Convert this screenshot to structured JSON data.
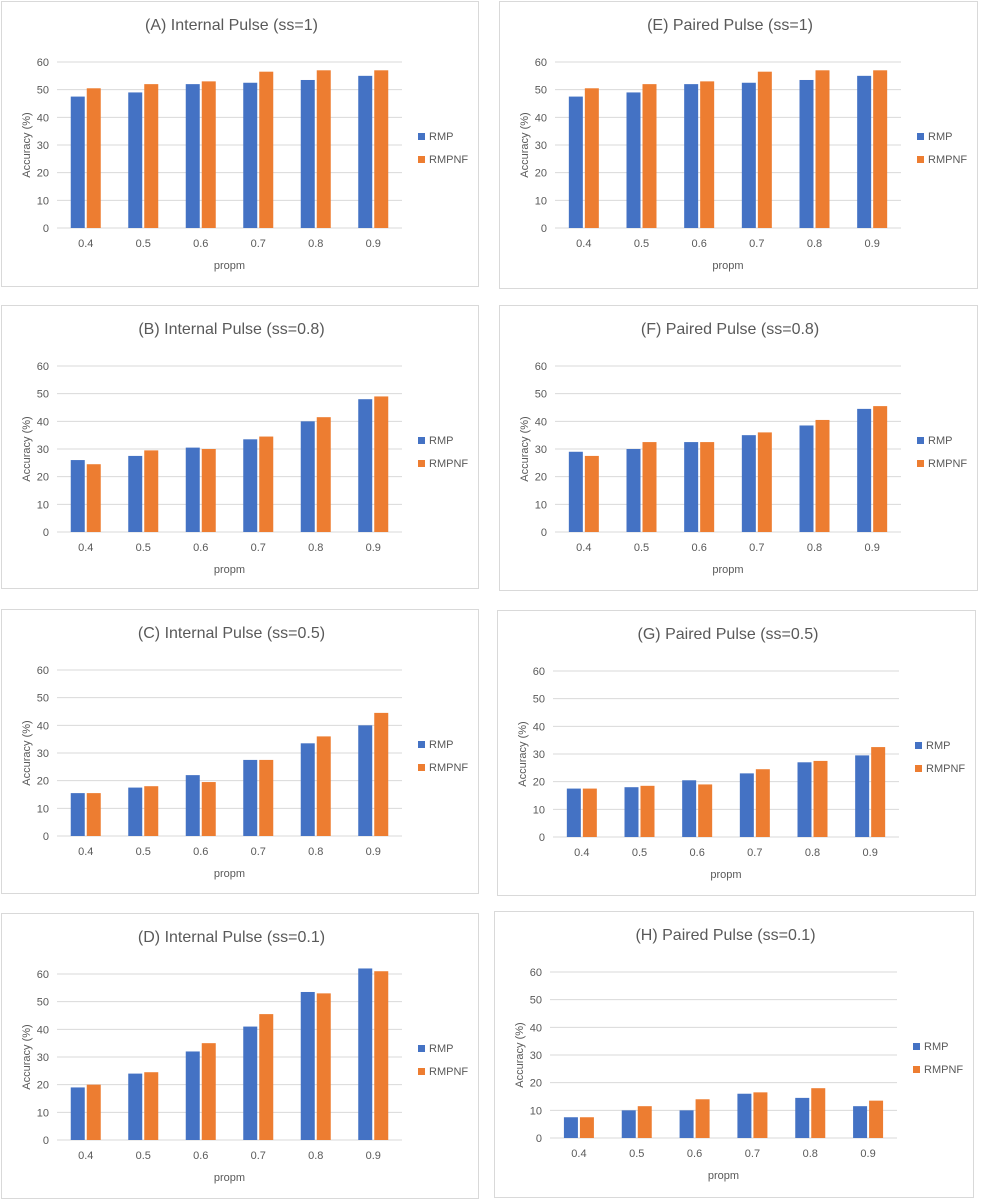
{
  "colors": {
    "RMP": "#4472c4",
    "RMPNF": "#ed7d31",
    "grid": "#d9d9d9",
    "text": "#595959",
    "border": "#d9d9d9"
  },
  "chart_data": [
    {
      "id": "A",
      "type": "bar",
      "title": "(A) Internal Pulse (ss=1)",
      "xlabel": "propm",
      "ylabel": "Accuracy (%)",
      "categories": [
        "0.4",
        "0.5",
        "0.6",
        "0.7",
        "0.8",
        "0.9"
      ],
      "ylim": [
        0,
        60
      ],
      "yticks": [
        0,
        10,
        20,
        30,
        40,
        50,
        60
      ],
      "grid": true,
      "legend_position": "right",
      "series": [
        {
          "name": "RMP",
          "values": [
            47.5,
            49,
            52,
            52.5,
            53.5,
            55
          ]
        },
        {
          "name": "RMPNF",
          "values": [
            50.5,
            52,
            53,
            56.5,
            57,
            57
          ]
        }
      ]
    },
    {
      "id": "E",
      "type": "bar",
      "title": "(E) Paired Pulse (ss=1)",
      "xlabel": "propm",
      "ylabel": "Accuracy (%)",
      "categories": [
        "0.4",
        "0.5",
        "0.6",
        "0.7",
        "0.8",
        "0.9"
      ],
      "ylim": [
        0,
        60
      ],
      "yticks": [
        0,
        10,
        20,
        30,
        40,
        50,
        60
      ],
      "grid": true,
      "legend_position": "right",
      "series": [
        {
          "name": "RMP",
          "values": [
            47.5,
            49,
            52,
            52.5,
            53.5,
            55
          ]
        },
        {
          "name": "RMPNF",
          "values": [
            50.5,
            52,
            53,
            56.5,
            57,
            57
          ]
        }
      ]
    },
    {
      "id": "B",
      "type": "bar",
      "title": "(B) Internal Pulse (ss=0.8)",
      "xlabel": "propm",
      "ylabel": "Accuracy (%)",
      "categories": [
        "0.4",
        "0.5",
        "0.6",
        "0.7",
        "0.8",
        "0.9"
      ],
      "ylim": [
        0,
        60
      ],
      "yticks": [
        0,
        10,
        20,
        30,
        40,
        50,
        60
      ],
      "grid": true,
      "legend_position": "right",
      "series": [
        {
          "name": "RMP",
          "values": [
            26,
            27.5,
            30.5,
            33.5,
            40,
            48
          ]
        },
        {
          "name": "RMPNF",
          "values": [
            24.5,
            29.5,
            30,
            34.5,
            41.5,
            49
          ]
        }
      ]
    },
    {
      "id": "F",
      "type": "bar",
      "title": "(F) Paired Pulse (ss=0.8)",
      "xlabel": "propm",
      "ylabel": "Accuracy (%)",
      "categories": [
        "0.4",
        "0.5",
        "0.6",
        "0.7",
        "0.8",
        "0.9"
      ],
      "ylim": [
        0,
        60
      ],
      "yticks": [
        0,
        10,
        20,
        30,
        40,
        50,
        60
      ],
      "grid": true,
      "legend_position": "right",
      "series": [
        {
          "name": "RMP",
          "values": [
            29,
            30,
            32.5,
            35,
            38.5,
            44.5
          ]
        },
        {
          "name": "RMPNF",
          "values": [
            27.5,
            32.5,
            32.5,
            36,
            40.5,
            45.5
          ]
        }
      ]
    },
    {
      "id": "C",
      "type": "bar",
      "title": "(C) Internal Pulse (ss=0.5)",
      "xlabel": "propm",
      "ylabel": "Accuracy (%)",
      "categories": [
        "0.4",
        "0.5",
        "0.6",
        "0.7",
        "0.8",
        "0.9"
      ],
      "ylim": [
        0,
        60
      ],
      "yticks": [
        0,
        10,
        20,
        30,
        40,
        50,
        60
      ],
      "grid": true,
      "legend_position": "right",
      "series": [
        {
          "name": "RMP",
          "values": [
            15.5,
            17.5,
            22,
            27.5,
            33.5,
            40
          ]
        },
        {
          "name": "RMPNF",
          "values": [
            15.5,
            18,
            19.5,
            27.5,
            36,
            44.5
          ]
        }
      ]
    },
    {
      "id": "G",
      "type": "bar",
      "title": "(G) Paired Pulse (ss=0.5)",
      "xlabel": "propm",
      "ylabel": "Accuracy (%)",
      "categories": [
        "0.4",
        "0.5",
        "0.6",
        "0.7",
        "0.8",
        "0.9"
      ],
      "ylim": [
        0,
        60
      ],
      "yticks": [
        0,
        10,
        20,
        30,
        40,
        50,
        60
      ],
      "grid": true,
      "legend_position": "right",
      "series": [
        {
          "name": "RMP",
          "values": [
            17.5,
            18,
            20.5,
            23,
            27,
            29.5
          ]
        },
        {
          "name": "RMPNF",
          "values": [
            17.5,
            18.5,
            19,
            24.5,
            27.5,
            32.5
          ]
        }
      ]
    },
    {
      "id": "D",
      "type": "bar",
      "title": "(D) Internal Pulse (ss=0.1)",
      "xlabel": "propm",
      "ylabel": "Accuracy (%)",
      "categories": [
        "0.4",
        "0.5",
        "0.6",
        "0.7",
        "0.8",
        "0.9"
      ],
      "ylim": [
        0,
        60
      ],
      "yticks": [
        0,
        10,
        20,
        30,
        40,
        50,
        60
      ],
      "grid": true,
      "legend_position": "right",
      "series": [
        {
          "name": "RMP",
          "values": [
            19,
            24,
            32,
            41,
            53.5,
            62
          ]
        },
        {
          "name": "RMPNF",
          "values": [
            20,
            24.5,
            35,
            45.5,
            53,
            61
          ]
        }
      ]
    },
    {
      "id": "H",
      "type": "bar",
      "title": "(H) Paired Pulse (ss=0.1)",
      "xlabel": "propm",
      "ylabel": "Accuracy (%)",
      "categories": [
        "0.4",
        "0.5",
        "0.6",
        "0.7",
        "0.8",
        "0.9"
      ],
      "ylim": [
        0,
        60
      ],
      "yticks": [
        0,
        10,
        20,
        30,
        40,
        50,
        60
      ],
      "grid": true,
      "legend_position": "right",
      "series": [
        {
          "name": "RMP",
          "values": [
            7.5,
            10,
            10,
            16,
            14.5,
            11.5
          ]
        },
        {
          "name": "RMPNF",
          "values": [
            7.5,
            11.5,
            14,
            16.5,
            18,
            13.5
          ]
        }
      ]
    }
  ]
}
